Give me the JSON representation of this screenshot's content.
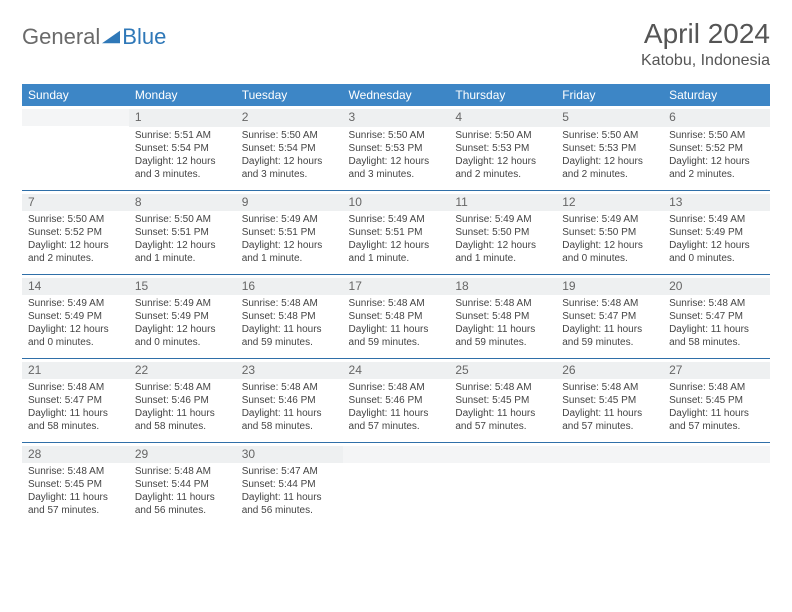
{
  "logo": {
    "part1": "General",
    "part2": "Blue"
  },
  "title": "April 2024",
  "location": "Katobu, Indonesia",
  "dayHeaders": [
    "Sunday",
    "Monday",
    "Tuesday",
    "Wednesday",
    "Thursday",
    "Friday",
    "Saturday"
  ],
  "colors": {
    "headerBg": "#3d86c6",
    "headerText": "#ffffff",
    "dayStrip": "#eef0f1",
    "rowBorder": "#2f6fa8",
    "logoGray": "#6a6a6a",
    "logoBlue": "#2f78b8"
  },
  "weeks": [
    [
      null,
      {
        "n": "1",
        "sunrise": "5:51 AM",
        "sunset": "5:54 PM",
        "daylight": "12 hours and 3 minutes."
      },
      {
        "n": "2",
        "sunrise": "5:50 AM",
        "sunset": "5:54 PM",
        "daylight": "12 hours and 3 minutes."
      },
      {
        "n": "3",
        "sunrise": "5:50 AM",
        "sunset": "5:53 PM",
        "daylight": "12 hours and 3 minutes."
      },
      {
        "n": "4",
        "sunrise": "5:50 AM",
        "sunset": "5:53 PM",
        "daylight": "12 hours and 2 minutes."
      },
      {
        "n": "5",
        "sunrise": "5:50 AM",
        "sunset": "5:53 PM",
        "daylight": "12 hours and 2 minutes."
      },
      {
        "n": "6",
        "sunrise": "5:50 AM",
        "sunset": "5:52 PM",
        "daylight": "12 hours and 2 minutes."
      }
    ],
    [
      {
        "n": "7",
        "sunrise": "5:50 AM",
        "sunset": "5:52 PM",
        "daylight": "12 hours and 2 minutes."
      },
      {
        "n": "8",
        "sunrise": "5:50 AM",
        "sunset": "5:51 PM",
        "daylight": "12 hours and 1 minute."
      },
      {
        "n": "9",
        "sunrise": "5:49 AM",
        "sunset": "5:51 PM",
        "daylight": "12 hours and 1 minute."
      },
      {
        "n": "10",
        "sunrise": "5:49 AM",
        "sunset": "5:51 PM",
        "daylight": "12 hours and 1 minute."
      },
      {
        "n": "11",
        "sunrise": "5:49 AM",
        "sunset": "5:50 PM",
        "daylight": "12 hours and 1 minute."
      },
      {
        "n": "12",
        "sunrise": "5:49 AM",
        "sunset": "5:50 PM",
        "daylight": "12 hours and 0 minutes."
      },
      {
        "n": "13",
        "sunrise": "5:49 AM",
        "sunset": "5:49 PM",
        "daylight": "12 hours and 0 minutes."
      }
    ],
    [
      {
        "n": "14",
        "sunrise": "5:49 AM",
        "sunset": "5:49 PM",
        "daylight": "12 hours and 0 minutes."
      },
      {
        "n": "15",
        "sunrise": "5:49 AM",
        "sunset": "5:49 PM",
        "daylight": "12 hours and 0 minutes."
      },
      {
        "n": "16",
        "sunrise": "5:48 AM",
        "sunset": "5:48 PM",
        "daylight": "11 hours and 59 minutes."
      },
      {
        "n": "17",
        "sunrise": "5:48 AM",
        "sunset": "5:48 PM",
        "daylight": "11 hours and 59 minutes."
      },
      {
        "n": "18",
        "sunrise": "5:48 AM",
        "sunset": "5:48 PM",
        "daylight": "11 hours and 59 minutes."
      },
      {
        "n": "19",
        "sunrise": "5:48 AM",
        "sunset": "5:47 PM",
        "daylight": "11 hours and 59 minutes."
      },
      {
        "n": "20",
        "sunrise": "5:48 AM",
        "sunset": "5:47 PM",
        "daylight": "11 hours and 58 minutes."
      }
    ],
    [
      {
        "n": "21",
        "sunrise": "5:48 AM",
        "sunset": "5:47 PM",
        "daylight": "11 hours and 58 minutes."
      },
      {
        "n": "22",
        "sunrise": "5:48 AM",
        "sunset": "5:46 PM",
        "daylight": "11 hours and 58 minutes."
      },
      {
        "n": "23",
        "sunrise": "5:48 AM",
        "sunset": "5:46 PM",
        "daylight": "11 hours and 58 minutes."
      },
      {
        "n": "24",
        "sunrise": "5:48 AM",
        "sunset": "5:46 PM",
        "daylight": "11 hours and 57 minutes."
      },
      {
        "n": "25",
        "sunrise": "5:48 AM",
        "sunset": "5:45 PM",
        "daylight": "11 hours and 57 minutes."
      },
      {
        "n": "26",
        "sunrise": "5:48 AM",
        "sunset": "5:45 PM",
        "daylight": "11 hours and 57 minutes."
      },
      {
        "n": "27",
        "sunrise": "5:48 AM",
        "sunset": "5:45 PM",
        "daylight": "11 hours and 57 minutes."
      }
    ],
    [
      {
        "n": "28",
        "sunrise": "5:48 AM",
        "sunset": "5:45 PM",
        "daylight": "11 hours and 57 minutes."
      },
      {
        "n": "29",
        "sunrise": "5:48 AM",
        "sunset": "5:44 PM",
        "daylight": "11 hours and 56 minutes."
      },
      {
        "n": "30",
        "sunrise": "5:47 AM",
        "sunset": "5:44 PM",
        "daylight": "11 hours and 56 minutes."
      },
      null,
      null,
      null,
      null
    ]
  ]
}
